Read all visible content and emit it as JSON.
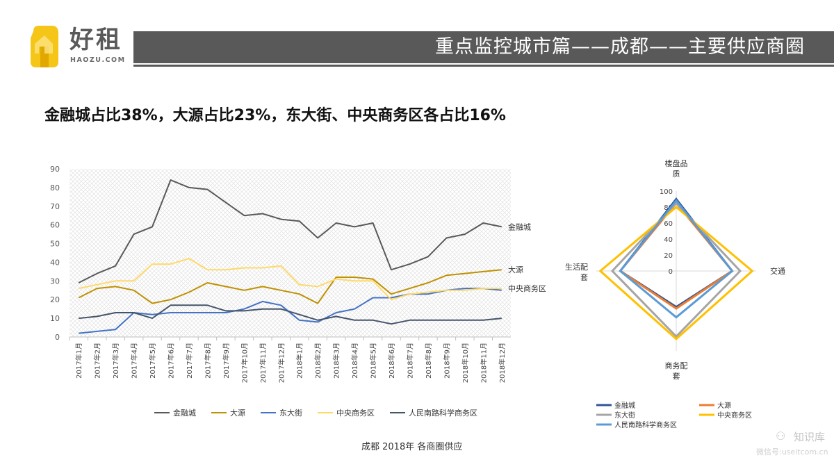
{
  "brand": {
    "name_cn": "好租",
    "name_en": "HAOZU.COM",
    "colors": {
      "yellow": "#f5c518",
      "dark": "#5a5a5a"
    }
  },
  "header": {
    "title": "重点监控城市篇——成都——主要供应商圈",
    "bar_color": "#595959"
  },
  "subtitle": "金融城占比38%，大源占比23%，东大街、中央商务区各占比16%",
  "caption": "成都 2018年 各商圈供应",
  "watermark": {
    "icon": "wechat-icon",
    "name": "知识库",
    "url": "微信号:useitcom.cn"
  },
  "chart_data": [
    {
      "type": "line",
      "title": "",
      "xlabel": "",
      "ylabel": "",
      "ylim": [
        0,
        90
      ],
      "yticks": [
        0,
        10,
        20,
        30,
        40,
        50,
        60,
        70,
        80,
        90
      ],
      "grid": "crosshatch",
      "legend": "bottom",
      "categories": [
        "2017年1月",
        "2017年2月",
        "2017年3月",
        "2017年4月",
        "2017年5月",
        "2017年6月",
        "2017年7月",
        "2017年8月",
        "2017年9月",
        "2017年10月",
        "2017年11月",
        "2017年12月",
        "2018年1月",
        "2018年2月",
        "2018年3月",
        "2018年4月",
        "2018年5月",
        "2018年6月",
        "2018年7月",
        "2018年8月",
        "2018年9月",
        "2018年10月",
        "2018年11月",
        "2018年12月"
      ],
      "series": [
        {
          "name": "金融城",
          "color": "#595959",
          "end_label": "金融城",
          "values": [
            29,
            34,
            38,
            55,
            59,
            84,
            80,
            79,
            72,
            65,
            66,
            63,
            62,
            53,
            61,
            59,
            61,
            36,
            39,
            43,
            53,
            55,
            61,
            59
          ]
        },
        {
          "name": "大源",
          "color": "#bf9000",
          "end_label": "大源",
          "values": [
            21,
            26,
            27,
            25,
            18,
            20,
            24,
            29,
            27,
            25,
            27,
            25,
            23,
            18,
            32,
            32,
            31,
            23,
            26,
            29,
            33,
            34,
            35,
            36
          ]
        },
        {
          "name": "东大街",
          "color": "#4472c4",
          "end_label": "",
          "values": [
            2,
            3,
            4,
            13,
            12,
            13,
            13,
            13,
            13,
            15,
            19,
            17,
            9,
            8,
            13,
            15,
            21,
            21,
            23,
            23,
            25,
            26,
            26,
            25
          ]
        },
        {
          "name": "中央商务区",
          "color": "#ffd966",
          "end_label": "中央商务区",
          "values": [
            26,
            28,
            30,
            30,
            39,
            39,
            42,
            36,
            36,
            37,
            37,
            38,
            28,
            27,
            31,
            30,
            30,
            20,
            23,
            24,
            25,
            25,
            26,
            26
          ]
        },
        {
          "name": "人民南路科学商务区",
          "color": "#44546a",
          "end_label": "",
          "values": [
            10,
            11,
            13,
            13,
            10,
            17,
            17,
            17,
            14,
            14,
            15,
            15,
            12,
            9,
            11,
            9,
            9,
            7,
            9,
            9,
            9,
            9,
            9,
            10
          ]
        }
      ]
    },
    {
      "type": "radar",
      "axes": [
        "楼盘品质",
        "交通",
        "商务配套",
        "生活配套"
      ],
      "rlim": [
        0,
        100
      ],
      "rticks": [
        0,
        20,
        40,
        60,
        80,
        100
      ],
      "legend": "bottom",
      "series": [
        {
          "name": "金融城",
          "color": "#2f5597",
          "values": [
            90,
            70,
            45,
            70
          ]
        },
        {
          "name": "大源",
          "color": "#ed7d31",
          "values": [
            85,
            70,
            47,
            70
          ]
        },
        {
          "name": "东大街",
          "color": "#a5a5a5",
          "values": [
            85,
            80,
            82,
            80
          ]
        },
        {
          "name": "中央商务区",
          "color": "#ffc000",
          "values": [
            80,
            95,
            85,
            95
          ]
        },
        {
          "name": "人民南路科学商务区",
          "color": "#5b9bd5",
          "values": [
            88,
            70,
            58,
            70
          ]
        }
      ]
    }
  ]
}
